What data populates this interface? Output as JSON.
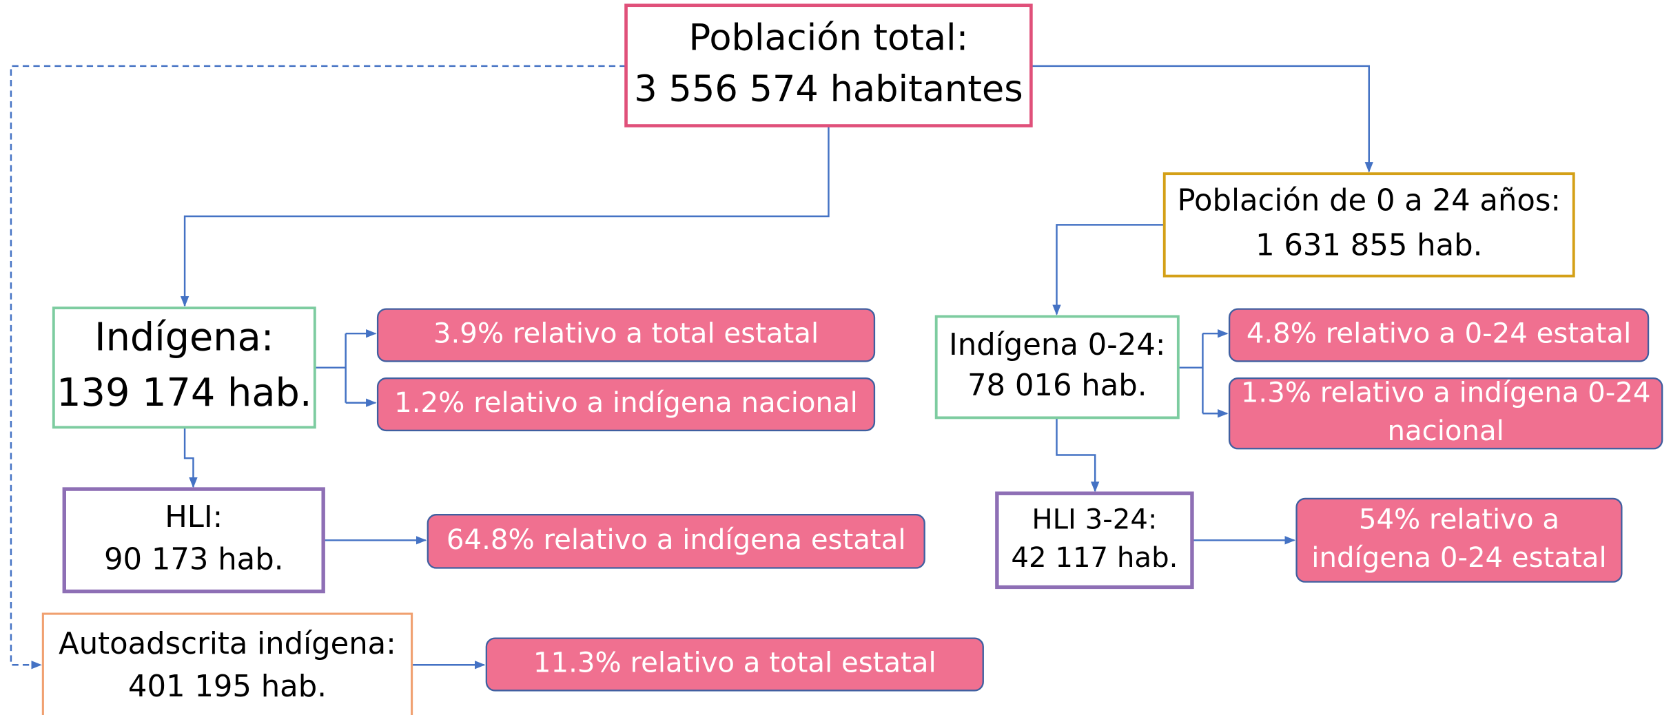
{
  "nodes": [
    {
      "lines": [
        "Población total:",
        "3 556 574 habitantes"
      ]
    },
    {
      "lines": [
        "Población de 0 a 24 años:",
        "1 631 855 hab."
      ]
    },
    {
      "lines": [
        "Indígena:",
        "139 174 hab."
      ]
    },
    {
      "lines": [
        "HLI:",
        "90 173 hab."
      ]
    },
    {
      "lines": [
        "Autoadscrita indígena:",
        "401 195 hab."
      ]
    },
    {
      "lines": [
        "Indígena 0-24:",
        "78 016 hab."
      ]
    },
    {
      "lines": [
        "HLI 3-24:",
        "42 117 hab."
      ]
    },
    {
      "lines": [
        "3.9% relativo a total estatal"
      ]
    },
    {
      "lines": [
        "1.2% relativo a indígena nacional"
      ]
    },
    {
      "lines": [
        "64.8% relativo a indígena estatal"
      ]
    },
    {
      "lines": [
        "11.3% relativo a total estatal"
      ]
    },
    {
      "lines": [
        "4.8% relativo a 0-24 estatal"
      ]
    },
    {
      "lines": [
        "1.3% relativo a indígena 0-24",
        "nacional"
      ]
    },
    {
      "lines": [
        "54% relativo a",
        "indígena 0-24 estatal"
      ]
    }
  ]
}
